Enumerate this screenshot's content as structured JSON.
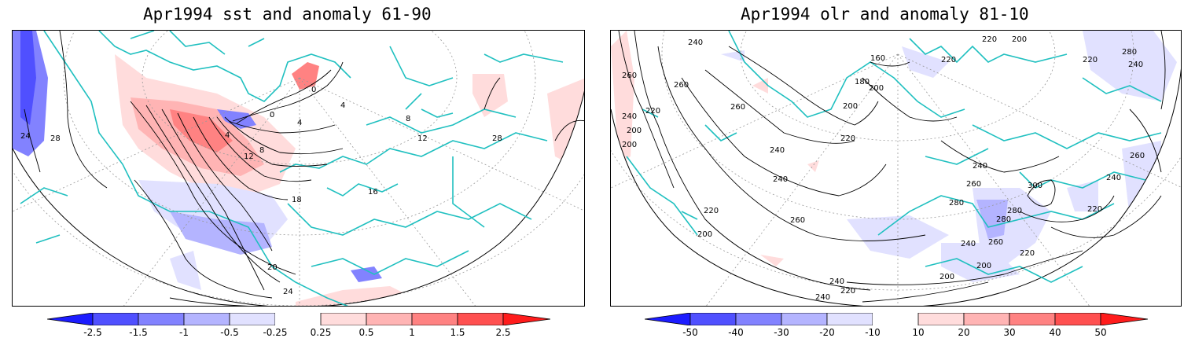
{
  "panels": [
    {
      "title": "Apr1994 sst and anomaly 61-90",
      "variable": "sst",
      "contour_labels": [
        "24",
        "28",
        "0",
        "0",
        "4",
        "4",
        "8",
        "12",
        "16",
        "18",
        "20",
        "24",
        "28",
        "28",
        "4",
        "8",
        "12"
      ],
      "colorbar": {
        "ticks": [
          "-2.5",
          "-1.5",
          "-1",
          "-0.5",
          "-0.25",
          "0.25",
          "0.5",
          "1",
          "1.5",
          "2.5"
        ],
        "colors": [
          "#1c1cff",
          "#5050ff",
          "#8282ff",
          "#b4b4ff",
          "#e1e1ff",
          "#ffffff",
          "#ffdcdc",
          "#ffb4b4",
          "#ff8282",
          "#ff5050",
          "#ff1c1c"
        ]
      }
    },
    {
      "title": "Apr1994 olr and anomaly 81-10",
      "variable": "olr",
      "contour_labels": [
        "240",
        "260",
        "220",
        "240",
        "200",
        "200",
        "260",
        "220",
        "240",
        "260",
        "160",
        "180",
        "200",
        "200",
        "200",
        "220",
        "220",
        "240",
        "260",
        "280",
        "300",
        "280",
        "260",
        "240",
        "220",
        "200",
        "200",
        "220",
        "240",
        "260",
        "280",
        "220",
        "240",
        "260",
        "280",
        "240",
        "220",
        "200",
        "240",
        "240",
        "220"
      ],
      "colorbar": {
        "ticks": [
          "-50",
          "-40",
          "-30",
          "-20",
          "-10",
          "10",
          "20",
          "30",
          "40",
          "50"
        ],
        "colors": [
          "#1c1cff",
          "#5050ff",
          "#8282ff",
          "#b4b4ff",
          "#e1e1ff",
          "#ffffff",
          "#ffdcdc",
          "#ffb4b4",
          "#ff8282",
          "#ff5050",
          "#ff1c1c"
        ]
      }
    }
  ],
  "colors": {
    "coastline": "#20c0c0",
    "contour": "#000000",
    "grid": "#999999"
  }
}
